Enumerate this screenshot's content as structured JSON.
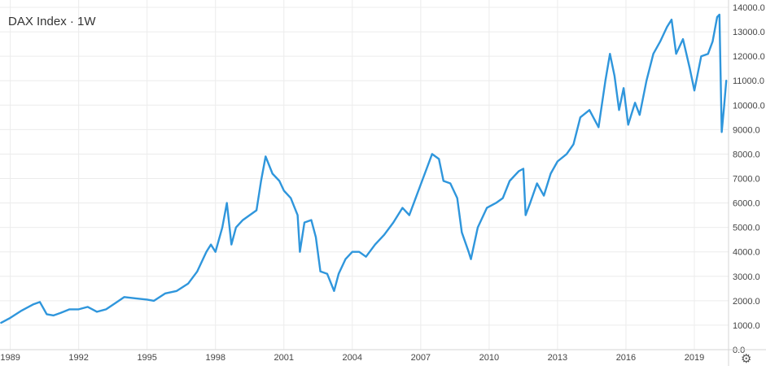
{
  "chart_data": {
    "type": "line",
    "title": "DAX Index · 1W",
    "xlabel": "",
    "ylabel": "",
    "x_ticks": [
      "1989",
      "1992",
      "1995",
      "1998",
      "2001",
      "2004",
      "2007",
      "2010",
      "2013",
      "2016",
      "2019"
    ],
    "y_ticks": [
      "0.0",
      "1000.0",
      "2000.0",
      "3000.0",
      "4000.0",
      "5000.0",
      "6000.0",
      "7000.0",
      "8000.0",
      "9000.0",
      "10000.0",
      "11000.0",
      "12000.0",
      "13000.0",
      "14000.0"
    ],
    "xlim": [
      1988.55,
      2020.5
    ],
    "ylim": [
      0,
      14300
    ],
    "grid": true,
    "legend": "none",
    "series": [
      {
        "color": "#2f96dc",
        "points": [
          [
            1988.6,
            1100
          ],
          [
            1989.0,
            1300
          ],
          [
            1989.5,
            1600
          ],
          [
            1990.0,
            1850
          ],
          [
            1990.3,
            1950
          ],
          [
            1990.6,
            1450
          ],
          [
            1990.9,
            1400
          ],
          [
            1991.2,
            1500
          ],
          [
            1991.6,
            1650
          ],
          [
            1992.0,
            1650
          ],
          [
            1992.4,
            1750
          ],
          [
            1992.8,
            1550
          ],
          [
            1993.2,
            1650
          ],
          [
            1993.6,
            1900
          ],
          [
            1994.0,
            2150
          ],
          [
            1994.5,
            2100
          ],
          [
            1995.0,
            2050
          ],
          [
            1995.3,
            2000
          ],
          [
            1995.8,
            2300
          ],
          [
            1996.3,
            2400
          ],
          [
            1996.8,
            2700
          ],
          [
            1997.2,
            3200
          ],
          [
            1997.6,
            4000
          ],
          [
            1997.8,
            4300
          ],
          [
            1998.0,
            4000
          ],
          [
            1998.3,
            5000
          ],
          [
            1998.5,
            6000
          ],
          [
            1998.7,
            4300
          ],
          [
            1998.9,
            5000
          ],
          [
            1999.2,
            5300
          ],
          [
            1999.5,
            5500
          ],
          [
            1999.8,
            5700
          ],
          [
            2000.0,
            6900
          ],
          [
            2000.2,
            7900
          ],
          [
            2000.5,
            7200
          ],
          [
            2000.8,
            6900
          ],
          [
            2001.0,
            6500
          ],
          [
            2001.3,
            6200
          ],
          [
            2001.6,
            5500
          ],
          [
            2001.7,
            4000
          ],
          [
            2001.9,
            5200
          ],
          [
            2002.2,
            5300
          ],
          [
            2002.4,
            4600
          ],
          [
            2002.6,
            3200
          ],
          [
            2002.9,
            3100
          ],
          [
            2003.2,
            2400
          ],
          [
            2003.4,
            3100
          ],
          [
            2003.7,
            3700
          ],
          [
            2004.0,
            4000
          ],
          [
            2004.3,
            4000
          ],
          [
            2004.6,
            3800
          ],
          [
            2005.0,
            4300
          ],
          [
            2005.4,
            4700
          ],
          [
            2005.8,
            5200
          ],
          [
            2006.2,
            5800
          ],
          [
            2006.5,
            5500
          ],
          [
            2006.9,
            6500
          ],
          [
            2007.3,
            7500
          ],
          [
            2007.5,
            8000
          ],
          [
            2007.8,
            7800
          ],
          [
            2008.0,
            6900
          ],
          [
            2008.3,
            6800
          ],
          [
            2008.6,
            6200
          ],
          [
            2008.8,
            4800
          ],
          [
            2009.1,
            4000
          ],
          [
            2009.2,
            3700
          ],
          [
            2009.5,
            5000
          ],
          [
            2009.9,
            5800
          ],
          [
            2010.3,
            6000
          ],
          [
            2010.6,
            6200
          ],
          [
            2010.9,
            6900
          ],
          [
            2011.3,
            7300
          ],
          [
            2011.5,
            7400
          ],
          [
            2011.6,
            5500
          ],
          [
            2011.8,
            6000
          ],
          [
            2012.1,
            6800
          ],
          [
            2012.4,
            6300
          ],
          [
            2012.7,
            7200
          ],
          [
            2013.0,
            7700
          ],
          [
            2013.4,
            8000
          ],
          [
            2013.7,
            8400
          ],
          [
            2014.0,
            9500
          ],
          [
            2014.4,
            9800
          ],
          [
            2014.8,
            9100
          ],
          [
            2015.1,
            11000
          ],
          [
            2015.3,
            12100
          ],
          [
            2015.5,
            11200
          ],
          [
            2015.7,
            9800
          ],
          [
            2015.9,
            10700
          ],
          [
            2016.1,
            9200
          ],
          [
            2016.4,
            10100
          ],
          [
            2016.6,
            9600
          ],
          [
            2016.9,
            11000
          ],
          [
            2017.2,
            12100
          ],
          [
            2017.5,
            12600
          ],
          [
            2017.8,
            13200
          ],
          [
            2018.0,
            13500
          ],
          [
            2018.2,
            12100
          ],
          [
            2018.5,
            12700
          ],
          [
            2018.8,
            11500
          ],
          [
            2019.0,
            10600
          ],
          [
            2019.3,
            12000
          ],
          [
            2019.6,
            12100
          ],
          [
            2019.8,
            12600
          ],
          [
            2020.0,
            13600
          ],
          [
            2020.1,
            13700
          ],
          [
            2020.2,
            8900
          ],
          [
            2020.3,
            9900
          ],
          [
            2020.4,
            11000
          ]
        ]
      }
    ]
  }
}
